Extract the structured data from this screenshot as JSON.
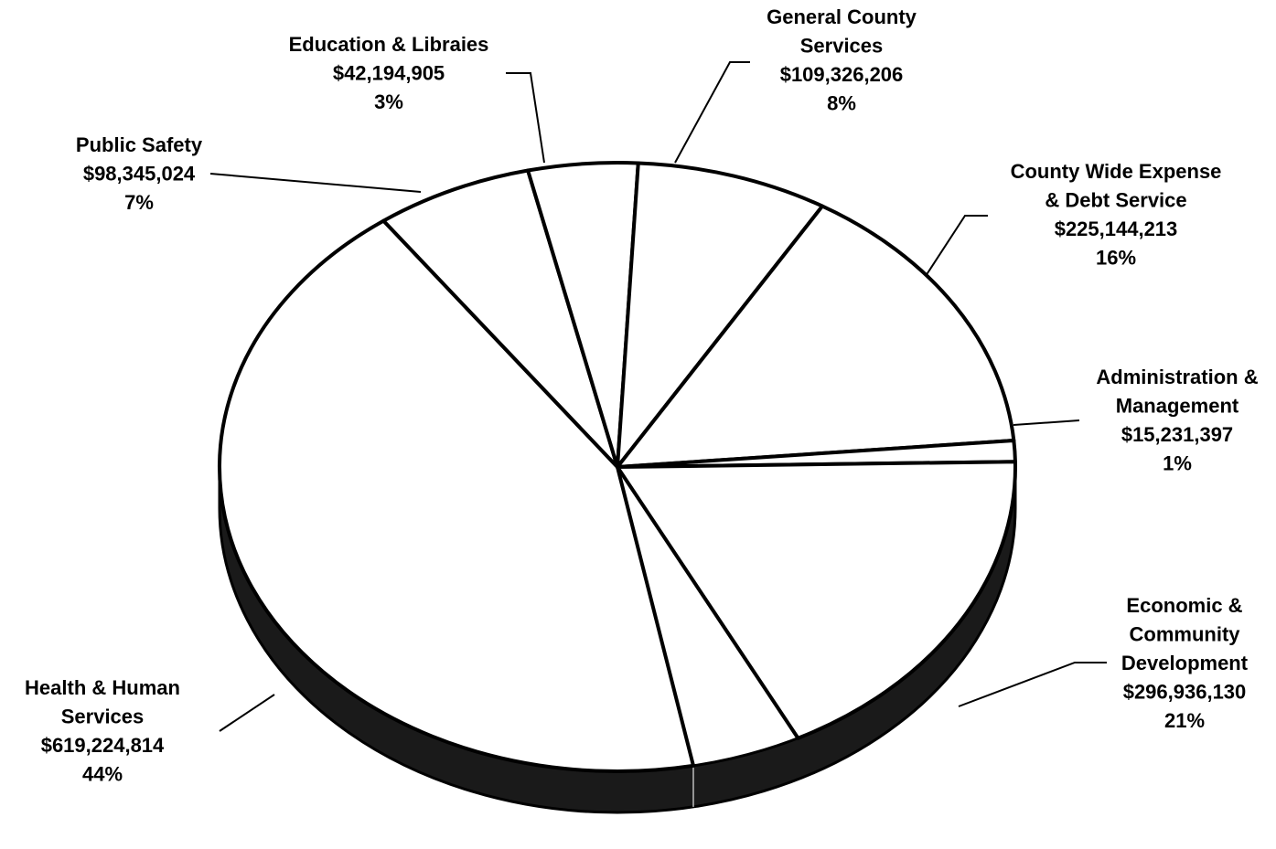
{
  "chart_data": {
    "type": "pie",
    "style": "3d",
    "title": "",
    "colors": {
      "slice_fill": "#ffffff",
      "outline": "#000000",
      "side_wall": "#1a1a1a"
    },
    "slices": [
      {
        "label_lines": [
          "Health & Human",
          "Services"
        ],
        "value": 619224814,
        "value_label": "$619,224,814",
        "percent": 44,
        "percent_label": "44%"
      },
      {
        "label_lines": [
          "Public Safety"
        ],
        "value": 98345024,
        "value_label": "$98,345,024",
        "percent": 7,
        "percent_label": "7%"
      },
      {
        "label_lines": [
          "Education & Libraies"
        ],
        "value": 42194905,
        "value_label": "$42,194,905",
        "percent": 3,
        "percent_label": "3%"
      },
      {
        "label_lines": [
          "General County",
          "Services"
        ],
        "value": 109326206,
        "value_label": "$109,326,206",
        "percent": 8,
        "percent_label": "8%"
      },
      {
        "label_lines": [
          "County Wide Expense",
          "& Debt Service"
        ],
        "value": 225144213,
        "value_label": "$225,144,213",
        "percent": 16,
        "percent_label": "16%"
      },
      {
        "label_lines": [
          "Administration &",
          "Management"
        ],
        "value": 15231397,
        "value_label": "$15,231,397",
        "percent": 1,
        "percent_label": "1%"
      },
      {
        "label_lines": [
          "Economic &",
          "Community",
          "Development"
        ],
        "value": 296936130,
        "value_label": "$296,936,130",
        "percent": 21,
        "percent_label": "21%"
      }
    ]
  }
}
